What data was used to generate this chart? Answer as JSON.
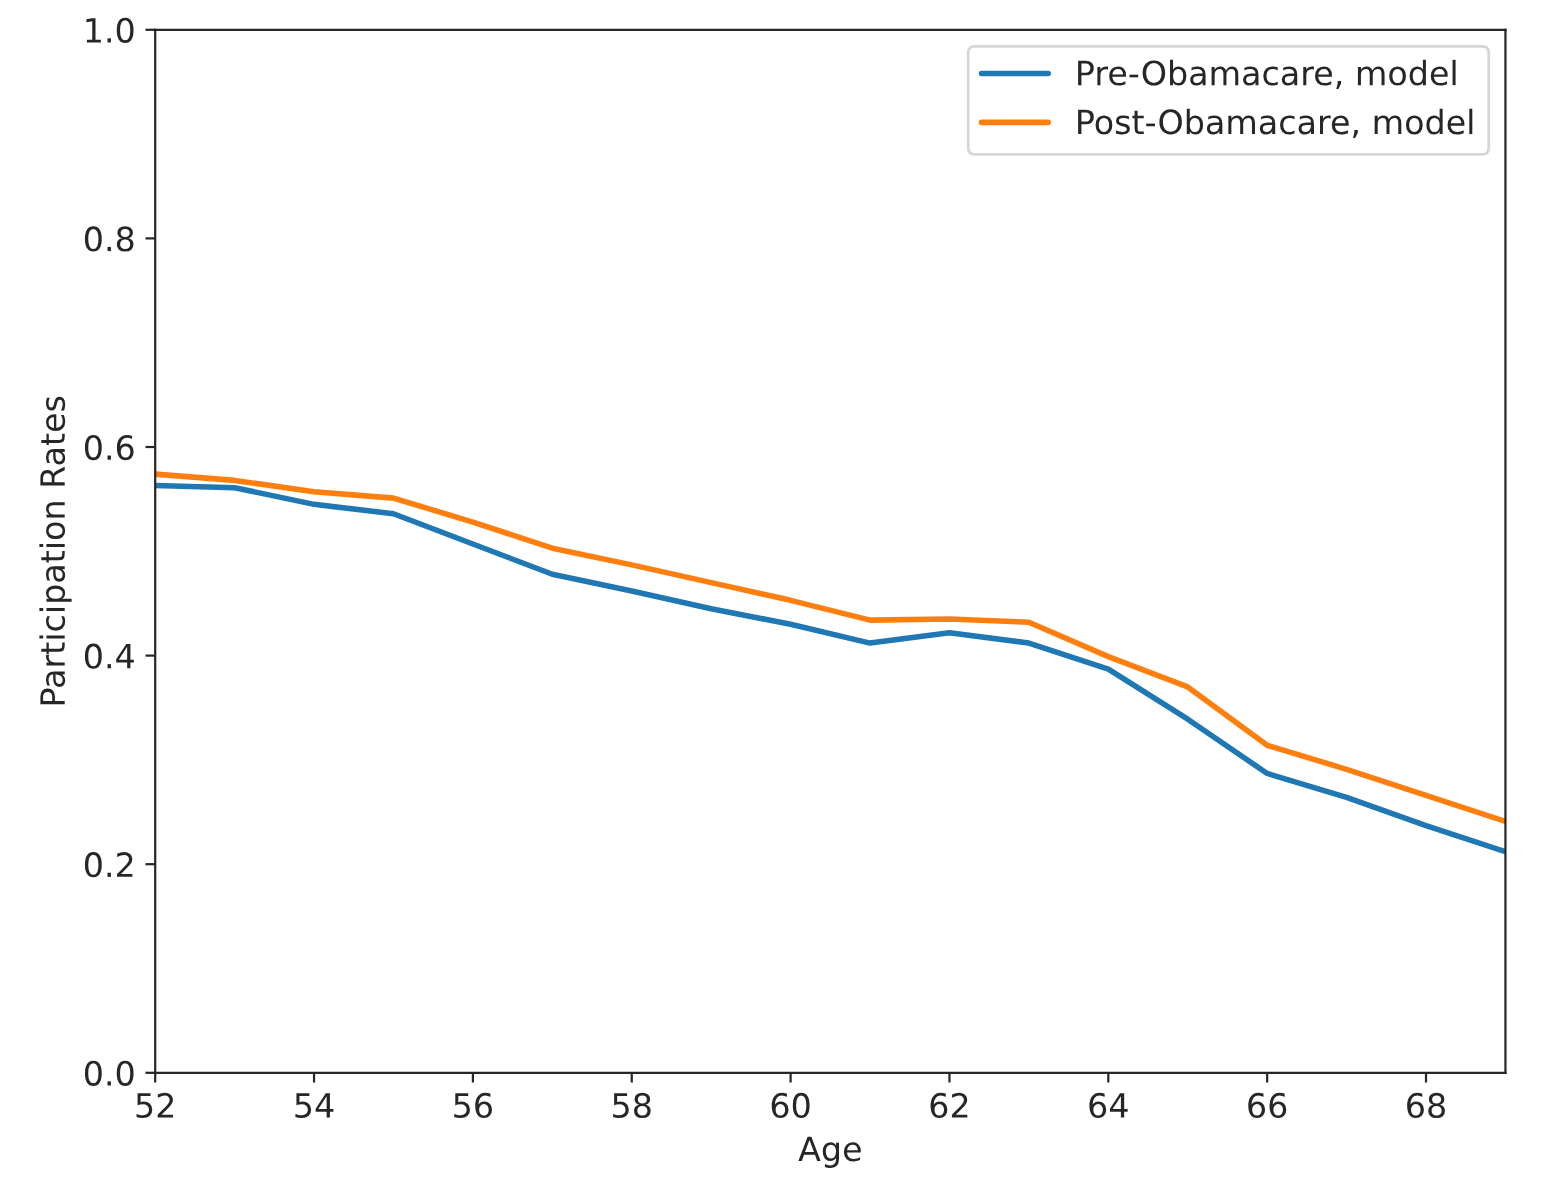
{
  "chart_data": {
    "type": "line",
    "xlabel": "Age",
    "ylabel": "Participation Rates",
    "x": [
      52,
      53,
      54,
      55,
      56,
      57,
      58,
      59,
      60,
      61,
      62,
      63,
      64,
      65,
      66,
      67,
      68,
      69
    ],
    "series": [
      {
        "name": "Pre-Obamacare, model",
        "color": "#1f77b4",
        "values": [
          0.563,
          0.561,
          0.545,
          0.536,
          0.507,
          0.478,
          0.462,
          0.445,
          0.43,
          0.412,
          0.422,
          0.412,
          0.387,
          0.339,
          0.287,
          0.264,
          0.237,
          0.212
        ]
      },
      {
        "name": "Post-Obamacare, model",
        "color": "#ff7f0e",
        "values": [
          0.574,
          0.568,
          0.557,
          0.551,
          0.528,
          0.503,
          0.487,
          0.47,
          0.453,
          0.434,
          0.435,
          0.432,
          0.399,
          0.37,
          0.314,
          0.291,
          0.266,
          0.241
        ]
      }
    ],
    "xlim": [
      52,
      69
    ],
    "xticks": [
      52,
      54,
      56,
      58,
      60,
      62,
      64,
      66,
      68
    ],
    "ylim": [
      0.0,
      1.0
    ],
    "yticks": [
      {
        "value": 0.0,
        "label": "0.0"
      },
      {
        "value": 0.2,
        "label": "0.2"
      },
      {
        "value": 0.4,
        "label": "0.4"
      },
      {
        "value": 0.6,
        "label": "0.6"
      },
      {
        "value": 0.8,
        "label": "0.8"
      },
      {
        "value": 1.0,
        "label": "1.0"
      }
    ],
    "legend": "top right",
    "grid": false
  }
}
